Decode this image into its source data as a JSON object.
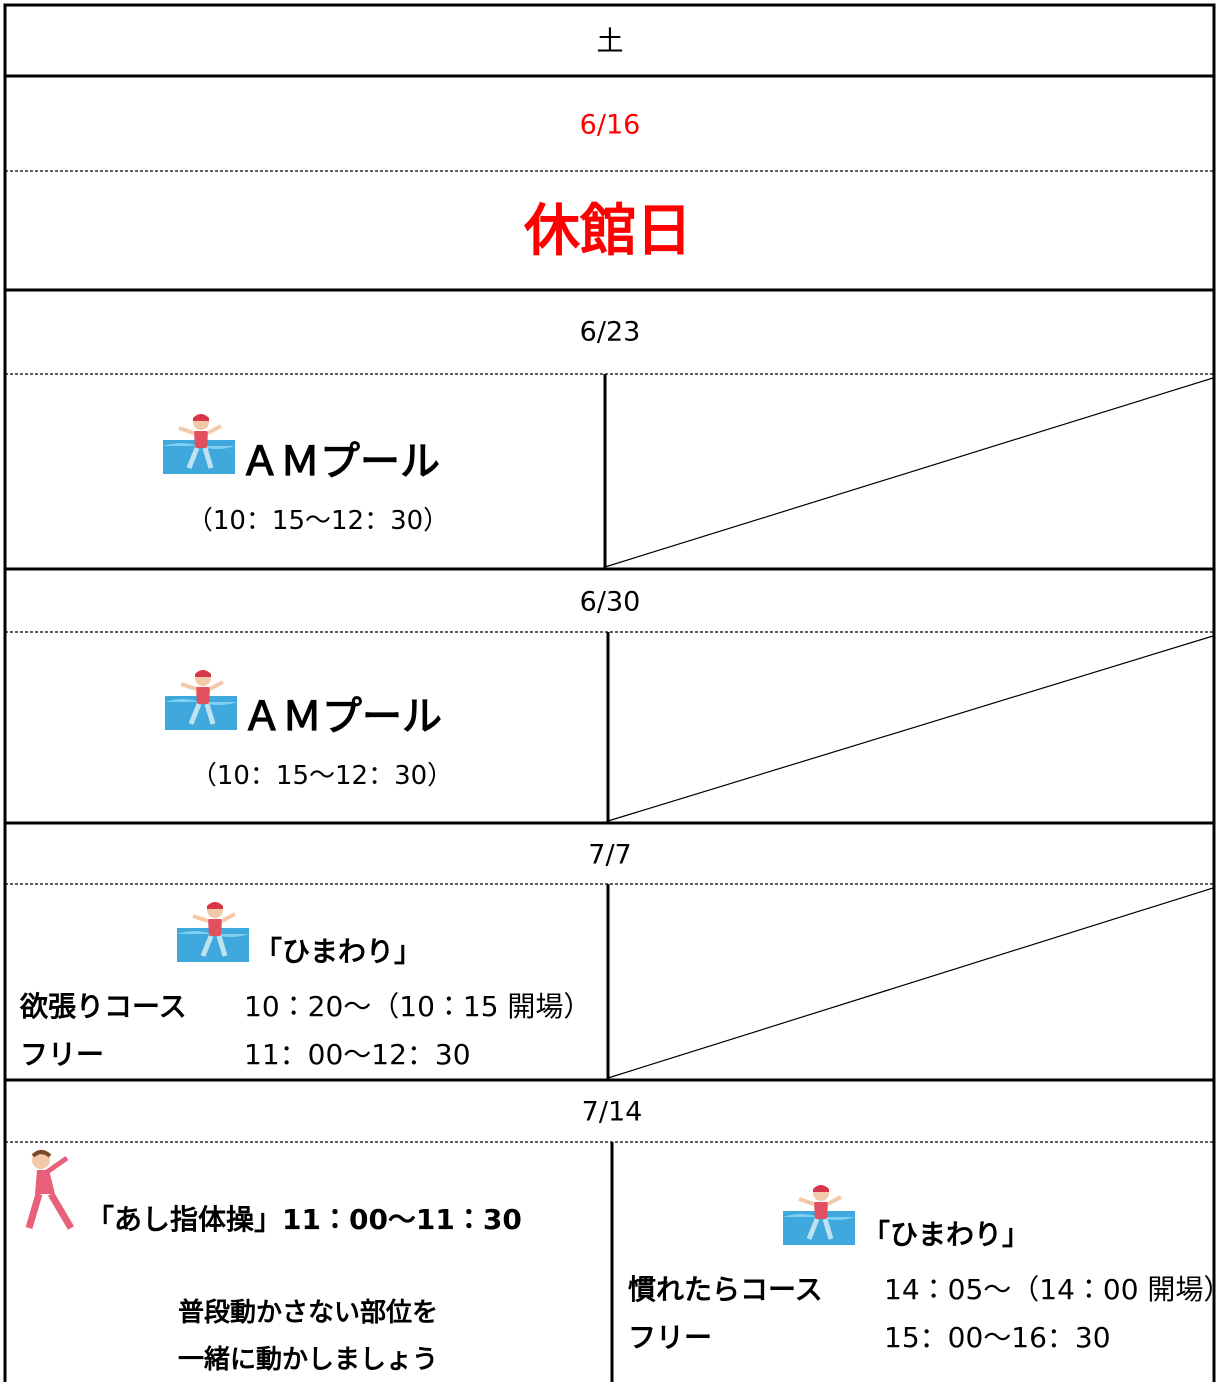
{
  "header": "土",
  "weeks": [
    {
      "date": "6/16",
      "closed": "休館日"
    },
    {
      "date": "6/23",
      "left": {
        "title": "ＡＭプール",
        "time": "（10：15〜12：30）"
      }
    },
    {
      "date": "6/30",
      "left": {
        "title": "ＡＭプール",
        "time": "（10：15〜12：30）"
      }
    },
    {
      "date": "7/7",
      "left": {
        "title": "「ひまわり」",
        "lines": [
          [
            "欲張りコース",
            "10：20〜（10：15 開場）"
          ],
          [
            "フリー",
            "11：00〜12：30"
          ]
        ]
      }
    },
    {
      "date": "7/14",
      "left": {
        "title": "「あし指体操」11：00〜11：30",
        "notes": [
          "普段動かさない部位を",
          "一緒に動かしましょう"
        ]
      },
      "right": {
        "title": "「ひまわり」",
        "lines": [
          [
            "慣れたらコース",
            "14：05〜（14：00 開場）"
          ],
          [
            "フリー",
            "15：00〜16：30"
          ]
        ]
      }
    }
  ]
}
